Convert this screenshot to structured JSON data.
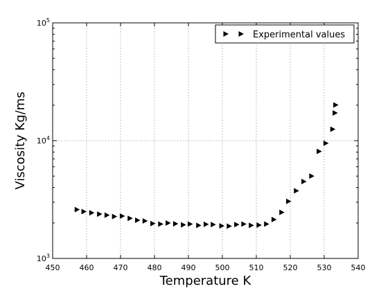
{
  "chart_data": {
    "type": "scatter",
    "xlabel": "Temperature K",
    "ylabel": "Viscosity Kg/ms",
    "xlim": [
      450,
      540
    ],
    "ylim": [
      1000,
      100000
    ],
    "yscale": "log",
    "grid": true,
    "legend_position": "top-right",
    "x_ticks": [
      "450",
      "460",
      "470",
      "480",
      "490",
      "500",
      "510",
      "520",
      "530",
      "540"
    ],
    "y_ticks": [
      {
        "base": "10",
        "exp": "3"
      },
      {
        "base": "10",
        "exp": "4"
      },
      {
        "base": "10",
        "exp": "5"
      }
    ],
    "marker_color": "#000000",
    "series": [
      {
        "name": "Experimental values",
        "marker": "triangle-right",
        "x": [
          457.2,
          459.2,
          461.5,
          463.8,
          466.0,
          468.2,
          470.5,
          472.8,
          475.0,
          477.2,
          479.5,
          481.8,
          484.0,
          486.2,
          488.5,
          490.5,
          493.0,
          495.2,
          497.3,
          499.8,
          502.0,
          504.2,
          506.3,
          508.5,
          510.8,
          513.0,
          515.2,
          517.5,
          519.5,
          521.8,
          524.0,
          526.3,
          528.5,
          530.5,
          532.5,
          533.2,
          533.4
        ],
        "y": [
          2600,
          2500,
          2440,
          2380,
          2330,
          2270,
          2290,
          2190,
          2110,
          2080,
          1980,
          1960,
          2000,
          1970,
          1930,
          1960,
          1910,
          1950,
          1940,
          1890,
          1880,
          1940,
          1960,
          1910,
          1920,
          1960,
          2140,
          2460,
          3050,
          3750,
          4500,
          5000,
          8100,
          9500,
          12500,
          17200,
          20100
        ]
      }
    ]
  }
}
